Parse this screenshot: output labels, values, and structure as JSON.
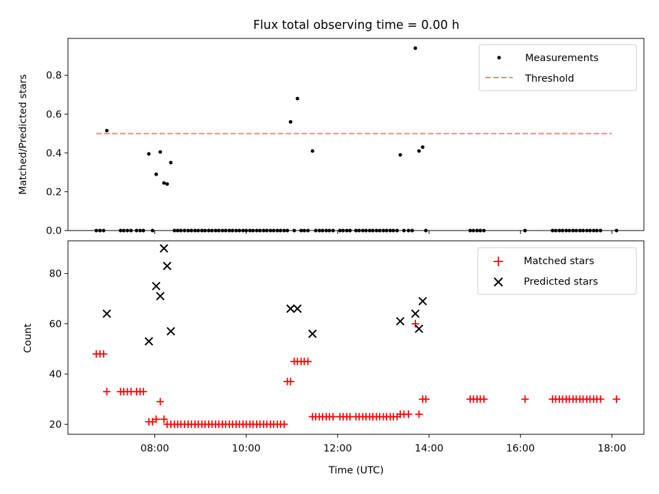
{
  "figure": {
    "title": "Flux total observing time = 0.00 h"
  },
  "chart_data": [
    {
      "type": "scatter",
      "title": "Flux total observing time = 0.00 h",
      "xlabel": "",
      "ylabel": "Matched/Predicted stars",
      "xlim": [
        6.1,
        18.7
      ],
      "ylim": [
        0,
        0.99
      ],
      "yticks": [
        0.0,
        0.2,
        0.4,
        0.6,
        0.8
      ],
      "ytick_labels": [
        "0.0",
        "0.2",
        "0.4",
        "0.6",
        "0.8"
      ],
      "legend": {
        "position": "upper right",
        "entries": [
          "Measurements",
          "Threshold"
        ]
      },
      "series": [
        {
          "name": "Measurements",
          "marker": "dot",
          "color": "#000000",
          "x": [
            6.72,
            6.8,
            6.88,
            6.95,
            7.25,
            7.32,
            7.4,
            7.48,
            7.6,
            7.68,
            7.75,
            7.87,
            7.95,
            8.03,
            8.12,
            8.2,
            8.27,
            8.35,
            8.43,
            8.5,
            8.57,
            8.65,
            8.73,
            8.8,
            8.88,
            8.95,
            9.03,
            9.1,
            9.18,
            9.25,
            9.33,
            9.4,
            9.48,
            9.55,
            9.63,
            9.7,
            9.78,
            9.85,
            9.93,
            10.0,
            10.08,
            10.15,
            10.23,
            10.3,
            10.38,
            10.45,
            10.53,
            10.6,
            10.68,
            10.75,
            10.83,
            10.9,
            10.97,
            11.05,
            11.12,
            11.2,
            11.27,
            11.35,
            11.45,
            11.52,
            11.6,
            11.67,
            11.75,
            11.82,
            11.9,
            12.05,
            12.12,
            12.2,
            12.27,
            12.4,
            12.47,
            12.55,
            12.62,
            12.7,
            12.77,
            12.85,
            12.92,
            13.0,
            13.07,
            13.15,
            13.22,
            13.3,
            13.37,
            13.45,
            13.55,
            13.63,
            13.7,
            13.78,
            13.86,
            13.93,
            14.9,
            14.97,
            15.05,
            15.12,
            15.2,
            16.1,
            16.7,
            16.77,
            16.85,
            16.92,
            17.0,
            17.07,
            17.15,
            17.22,
            17.3,
            17.37,
            17.45,
            17.52,
            17.6,
            17.67,
            17.75,
            18.1
          ],
          "y": [
            0,
            0,
            0,
            0.515,
            0,
            0,
            0,
            0,
            0,
            0,
            0,
            0.395,
            0,
            0.29,
            0.405,
            0.245,
            0.24,
            0.35,
            0,
            0,
            0,
            0,
            0,
            0,
            0,
            0,
            0,
            0,
            0,
            0,
            0,
            0,
            0,
            0,
            0,
            0,
            0,
            0,
            0,
            0,
            0,
            0,
            0,
            0,
            0,
            0,
            0,
            0,
            0,
            0,
            0,
            0,
            0.56,
            0,
            0.68,
            0,
            0,
            0,
            0.41,
            0,
            0,
            0,
            0,
            0,
            0,
            0,
            0,
            0,
            0,
            0,
            0,
            0,
            0,
            0,
            0,
            0,
            0,
            0,
            0,
            0,
            0,
            0,
            0.39,
            0,
            0,
            0,
            0.94,
            0.41,
            0.43,
            0,
            0,
            0,
            0,
            0,
            0,
            0,
            0,
            0,
            0,
            0,
            0,
            0,
            0,
            0,
            0,
            0,
            0,
            0,
            0,
            0,
            0,
            0
          ]
        },
        {
          "name": "Threshold",
          "style": "dashed",
          "color": "#ff7f7f",
          "x": [
            6.72,
            18.0
          ],
          "y": [
            0.5,
            0.5
          ]
        }
      ]
    },
    {
      "type": "scatter",
      "title": "",
      "xlabel": "Time (UTC)",
      "ylabel": "Count",
      "xlim": [
        6.1,
        18.7
      ],
      "ylim": [
        16,
        93
      ],
      "xticks": [
        8,
        10,
        12,
        14,
        16,
        18
      ],
      "xtick_labels": [
        "08:00",
        "10:00",
        "12:00",
        "14:00",
        "16:00",
        "18:00"
      ],
      "yticks": [
        20,
        40,
        60,
        80
      ],
      "ytick_labels": [
        "20",
        "40",
        "60",
        "80"
      ],
      "legend": {
        "position": "upper right",
        "entries": [
          "Matched stars",
          "Predicted stars"
        ]
      },
      "series": [
        {
          "name": "Matched stars",
          "marker": "plus",
          "color": "#ff0000",
          "x": [
            6.72,
            6.8,
            6.88,
            6.95,
            7.25,
            7.32,
            7.4,
            7.48,
            7.6,
            7.68,
            7.75,
            7.87,
            7.95,
            8.03,
            8.12,
            8.2,
            8.27,
            8.35,
            8.43,
            8.5,
            8.57,
            8.65,
            8.73,
            8.8,
            8.88,
            8.95,
            9.03,
            9.1,
            9.18,
            9.25,
            9.33,
            9.4,
            9.48,
            9.55,
            9.63,
            9.7,
            9.78,
            9.85,
            9.93,
            10.0,
            10.08,
            10.15,
            10.23,
            10.3,
            10.38,
            10.45,
            10.53,
            10.6,
            10.68,
            10.75,
            10.83,
            10.9,
            10.97,
            11.05,
            11.12,
            11.2,
            11.27,
            11.35,
            11.45,
            11.52,
            11.6,
            11.67,
            11.75,
            11.82,
            11.9,
            12.05,
            12.12,
            12.2,
            12.27,
            12.4,
            12.47,
            12.55,
            12.62,
            12.7,
            12.77,
            12.85,
            12.92,
            13.0,
            13.07,
            13.15,
            13.22,
            13.3,
            13.37,
            13.45,
            13.55,
            13.7,
            13.78,
            13.86,
            13.93,
            14.9,
            14.97,
            15.05,
            15.12,
            15.2,
            16.1,
            16.7,
            16.77,
            16.85,
            16.92,
            17.0,
            17.07,
            17.15,
            17.22,
            17.3,
            17.37,
            17.45,
            17.52,
            17.6,
            17.67,
            17.75,
            18.1
          ],
          "y": [
            48,
            48,
            48,
            33,
            33,
            33,
            33,
            33,
            33,
            33,
            33,
            21,
            21,
            22,
            29,
            22,
            20,
            20,
            20,
            20,
            20,
            20,
            20,
            20,
            20,
            20,
            20,
            20,
            20,
            20,
            20,
            20,
            20,
            20,
            20,
            20,
            20,
            20,
            20,
            20,
            20,
            20,
            20,
            20,
            20,
            20,
            20,
            20,
            20,
            20,
            20,
            37,
            37,
            45,
            45,
            45,
            45,
            45,
            23,
            23,
            23,
            23,
            23,
            23,
            23,
            23,
            23,
            23,
            23,
            23,
            23,
            23,
            23,
            23,
            23,
            23,
            23,
            23,
            23,
            23,
            23,
            23,
            24,
            24,
            24,
            60,
            24,
            30,
            30,
            30,
            30,
            30,
            30,
            30,
            30,
            30,
            30,
            30,
            30,
            30,
            30,
            30,
            30,
            30,
            30,
            30,
            30,
            30,
            30,
            30,
            30
          ]
        },
        {
          "name": "Predicted stars",
          "marker": "x",
          "color": "#000000",
          "x": [
            6.95,
            7.87,
            8.03,
            8.12,
            8.2,
            8.27,
            8.35,
            10.97,
            11.12,
            11.45,
            13.37,
            13.7,
            13.78,
            13.86
          ],
          "y": [
            64,
            53,
            75,
            71,
            90,
            83,
            57,
            66,
            66,
            56,
            61,
            64,
            58,
            69
          ]
        }
      ]
    }
  ]
}
